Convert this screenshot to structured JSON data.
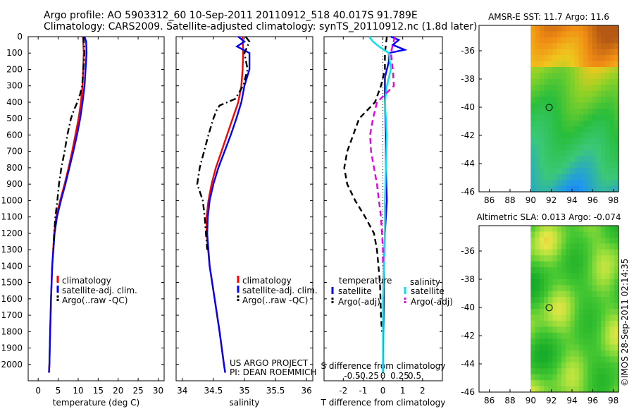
{
  "header": {
    "line1": "Argo profile: AO 5903312_60 10-Sep-2011 20110912_518 40.017S 91.789E",
    "line2": "Climatology: CARS2009. Satellite-adjusted climatology: synTS_20110912.nc (1.8d later)"
  },
  "project": {
    "line1": "US ARGO PROJECT",
    "line2": "PI: DEAN ROEMMICH"
  },
  "watermark": "©IMOS 28-Sep-2011 02:14:35",
  "colors": {
    "climatology": "#ff0000",
    "satellite": "#0000ff",
    "argo": "#000000",
    "salinity_satellite": "#00e5ee",
    "salinity_argo": "#e600e6"
  },
  "chart_data": [
    {
      "id": "temperature",
      "type": "line",
      "xlabel": "temperature (deg C)",
      "xticks": [
        0,
        5,
        10,
        15,
        20,
        25,
        30
      ],
      "xlim": [
        -2.5,
        31.5
      ],
      "ylim": [
        2100,
        0
      ],
      "yticks": [
        0,
        100,
        200,
        300,
        400,
        500,
        600,
        700,
        800,
        900,
        1000,
        1100,
        1200,
        1300,
        1400,
        1500,
        1600,
        1700,
        1800,
        1900,
        2000
      ],
      "legend": [
        "climatology",
        "satellite-adj. clim.",
        "Argo(..raw -QC)"
      ],
      "series": [
        {
          "name": "climatology",
          "color": "#ff0000",
          "style": "solid",
          "depth": [
            0,
            100,
            300,
            400,
            500,
            600,
            700,
            800,
            900,
            1000,
            1100,
            1200,
            1400,
            1600,
            1800,
            2000,
            2050
          ],
          "values": [
            11.2,
            11.4,
            11.1,
            10.7,
            10.1,
            9.3,
            8.5,
            7.6,
            6.6,
            5.5,
            4.5,
            4.0,
            3.5,
            3.2,
            3.0,
            2.8,
            2.7
          ]
        },
        {
          "name": "satellite-adj. clim.",
          "color": "#0000ff",
          "style": "solid",
          "depth": [
            0,
            30,
            100,
            300,
            400,
            500,
            600,
            700,
            800,
            900,
            1000,
            1100,
            1200,
            1400,
            1600,
            1800,
            2000,
            2050
          ],
          "values": [
            11.6,
            12.0,
            12.1,
            11.6,
            11.1,
            10.5,
            9.7,
            8.8,
            7.8,
            6.8,
            5.7,
            4.7,
            4.1,
            3.5,
            3.2,
            3.0,
            2.8,
            2.7
          ]
        },
        {
          "name": "Argo(..raw -QC)",
          "color": "#000000",
          "style": "dashdot",
          "depth": [
            0,
            50,
            100,
            200,
            300,
            350,
            400,
            450,
            500,
            600,
            700,
            800,
            900,
            1000,
            1100,
            1200,
            1300
          ],
          "values": [
            11.3,
            11.5,
            11.6,
            11.3,
            11.0,
            10.5,
            9.8,
            8.9,
            8.2,
            7.3,
            6.6,
            5.8,
            5.2,
            4.8,
            4.3,
            4.0,
            3.8
          ]
        }
      ]
    },
    {
      "id": "salinity",
      "type": "line",
      "xlabel": "salinity",
      "xticks": [
        34,
        34.5,
        35,
        35.5,
        36
      ],
      "xlim": [
        33.9,
        36.1
      ],
      "ylim": [
        2100,
        0
      ],
      "legend": [
        "climatology",
        "satellite-adj. clim.",
        "Argo(..raw -QC)"
      ],
      "series": [
        {
          "name": "climatology",
          "color": "#ff0000",
          "style": "solid",
          "depth": [
            0,
            100,
            200,
            300,
            400,
            500,
            600,
            700,
            800,
            900,
            1000,
            1100,
            1200,
            1400,
            1600,
            1800,
            2000,
            2050
          ],
          "values": [
            34.97,
            34.98,
            34.97,
            34.95,
            34.9,
            34.81,
            34.72,
            34.63,
            34.54,
            34.47,
            34.42,
            34.39,
            34.39,
            34.44,
            34.52,
            34.6,
            34.67,
            34.69
          ]
        },
        {
          "name": "satellite-adj. clim.",
          "color": "#0000ff",
          "style": "solid",
          "depth": [
            0,
            30,
            60,
            100,
            200,
            300,
            400,
            500,
            600,
            700,
            800,
            900,
            1000,
            1100,
            1200,
            1400,
            1600,
            1800,
            2000,
            2050
          ],
          "values": [
            34.9,
            35.0,
            34.88,
            35.08,
            35.08,
            35.0,
            34.95,
            34.87,
            34.78,
            34.68,
            34.58,
            34.5,
            34.44,
            34.41,
            34.4,
            34.44,
            34.52,
            34.6,
            34.67,
            34.69
          ]
        },
        {
          "name": "Argo(..raw -QC)",
          "color": "#000000",
          "style": "dashdot",
          "depth": [
            0,
            30,
            100,
            200,
            300,
            380,
            420,
            450,
            500,
            600,
            700,
            800,
            900,
            1000,
            1100,
            1200,
            1300
          ],
          "values": [
            35.02,
            35.08,
            35.0,
            35.05,
            34.98,
            34.85,
            34.6,
            34.55,
            34.5,
            34.42,
            34.35,
            34.28,
            34.24,
            34.33,
            34.36,
            34.38,
            34.4
          ]
        }
      ]
    },
    {
      "id": "difference",
      "type": "line",
      "xlabel": "T difference from climatology",
      "xticks": [
        -2,
        -1,
        0,
        1,
        2
      ],
      "xlim": [
        -2.97,
        3.0
      ],
      "top_label": "S difference from climatology",
      "top_ticks": [
        "-0.5",
        "-0.25",
        "0",
        "0.25",
        "0.5"
      ],
      "top_tick_positions": [
        -1.55,
        -0.75,
        0,
        0.85,
        1.6
      ],
      "ylim": [
        2100,
        0
      ],
      "legend_titles": [
        "temperature",
        "salinity"
      ],
      "legend": [
        "satellite",
        "Argo(-adj)",
        "satellite",
        "Argo(-adj)"
      ],
      "series": [
        {
          "name": "temperature satellite",
          "color": "#0000ff",
          "style": "solid",
          "depth": [
            0,
            20,
            50,
            80,
            100,
            150,
            250,
            400,
            600,
            800,
            1000,
            1100,
            1200,
            1400,
            1600,
            1800,
            2000,
            2050
          ],
          "values": [
            0.4,
            0.8,
            0.5,
            1.1,
            0.3,
            0.3,
            0.1,
            0.1,
            0.15,
            0.15,
            0.2,
            0.15,
            0.1,
            0.05,
            0.05,
            0.02,
            0.0,
            0.0
          ]
        },
        {
          "name": "temperature Argo(-adj)",
          "color": "#000000",
          "style": "dashed",
          "depth": [
            0,
            100,
            200,
            300,
            400,
            450,
            500,
            600,
            700,
            800,
            900,
            1000,
            1100,
            1200,
            1300,
            1500,
            1700,
            1800
          ],
          "values": [
            0.2,
            0.1,
            0.1,
            -0.1,
            -0.4,
            -0.8,
            -1.2,
            -1.5,
            -1.8,
            -1.95,
            -1.8,
            -1.4,
            -0.9,
            -0.45,
            -0.3,
            -0.15,
            -0.1,
            -0.05
          ]
        },
        {
          "name": "salinity satellite",
          "color": "#00e5ee",
          "style": "solid",
          "depth": [
            0,
            30,
            60,
            100,
            200,
            300,
            400,
            600,
            800,
            1000,
            1200,
            1400,
            1600,
            1800,
            2000,
            2050
          ],
          "values": [
            -0.7,
            -0.5,
            -0.2,
            0.3,
            0.4,
            0.2,
            0.1,
            0.2,
            0.15,
            0.1,
            0.1,
            0.05,
            0.0,
            0.0,
            0.0,
            0.0
          ]
        },
        {
          "name": "salinity Argo(-adj)",
          "color": "#e600e6",
          "style": "dashed",
          "depth": [
            0,
            100,
            200,
            300,
            400,
            500,
            600,
            700,
            800,
            900,
            1000,
            1100,
            1200,
            1300,
            1400
          ],
          "values": [
            0.6,
            0.4,
            0.5,
            0.55,
            -0.3,
            -0.5,
            -0.65,
            -0.6,
            -0.45,
            -0.3,
            -0.2,
            -0.1,
            -0.05,
            0.0,
            0.0
          ]
        }
      ]
    },
    {
      "id": "sst_map",
      "type": "heatmap",
      "title": "AMSR-E SST: 11.7 Argo: 11.6",
      "xticks": [
        86,
        88,
        90,
        92,
        94,
        96,
        98
      ],
      "yticks": [
        -36,
        -38,
        -40,
        -42,
        -44,
        -46
      ],
      "xlim": [
        85,
        98.5
      ],
      "ylim": [
        -46,
        -34.2
      ],
      "data_xlim": [
        90,
        98.5
      ],
      "marker": {
        "lon": 91.789,
        "lat": -40.017
      }
    },
    {
      "id": "sla_map",
      "type": "heatmap",
      "title": "Altimetric SLA: 0.013 Argo: -0.074",
      "xticks": [
        86,
        88,
        90,
        92,
        94,
        96,
        98
      ],
      "yticks": [
        -36,
        -38,
        -40,
        -42,
        -44,
        -46
      ],
      "xlim": [
        85,
        98.5
      ],
      "ylim": [
        -46,
        -34.2
      ],
      "data_xlim": [
        90,
        98.5
      ],
      "marker": {
        "lon": 91.789,
        "lat": -40.017
      }
    }
  ]
}
